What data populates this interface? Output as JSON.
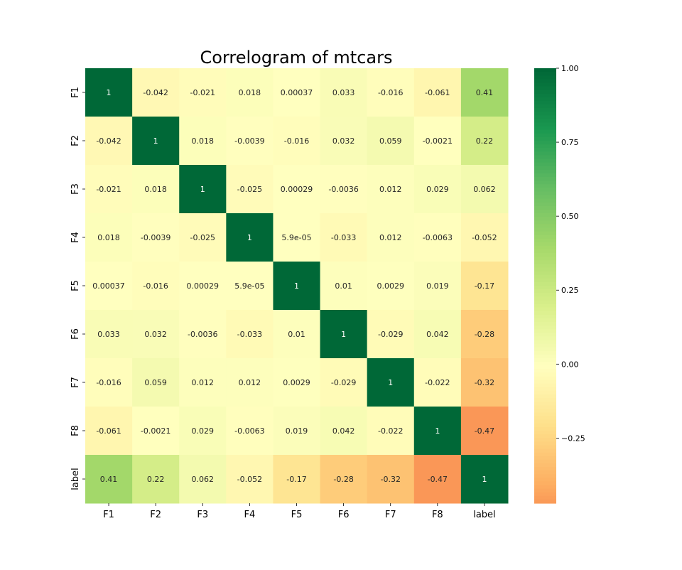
{
  "chart_data": {
    "type": "heatmap",
    "title": "Correlogram of mtcars",
    "xlabel": "",
    "ylabel": "",
    "labels": [
      "F1",
      "F2",
      "F3",
      "F4",
      "F5",
      "F6",
      "F7",
      "F8",
      "label"
    ],
    "values": [
      [
        1,
        -0.042,
        -0.021,
        0.018,
        0.00037,
        0.033,
        -0.016,
        -0.061,
        0.41
      ],
      [
        -0.042,
        1,
        0.018,
        -0.0039,
        -0.016,
        0.032,
        0.059,
        -0.0021,
        0.22
      ],
      [
        -0.021,
        0.018,
        1,
        -0.025,
        0.00029,
        -0.0036,
        0.012,
        0.029,
        0.062
      ],
      [
        0.018,
        -0.0039,
        -0.025,
        1,
        5.9e-05,
        -0.033,
        0.012,
        -0.0063,
        -0.052
      ],
      [
        0.00037,
        -0.016,
        0.00029,
        5.9e-05,
        1,
        0.01,
        0.0029,
        0.019,
        -0.17
      ],
      [
        0.033,
        0.032,
        -0.0036,
        -0.033,
        0.01,
        1,
        -0.029,
        0.042,
        -0.28
      ],
      [
        -0.016,
        0.059,
        0.012,
        0.012,
        0.0029,
        -0.029,
        1,
        -0.022,
        -0.32
      ],
      [
        -0.061,
        -0.0021,
        0.029,
        -0.0063,
        0.019,
        0.042,
        -0.022,
        1,
        -0.47
      ],
      [
        0.41,
        0.22,
        0.062,
        -0.052,
        -0.17,
        -0.28,
        -0.32,
        -0.47,
        1
      ]
    ],
    "annotations": [
      [
        "1",
        "-0.042",
        "-0.021",
        "0.018",
        "0.00037",
        "0.033",
        "-0.016",
        "-0.061",
        "0.41"
      ],
      [
        "-0.042",
        "1",
        "0.018",
        "-0.0039",
        "-0.016",
        "0.032",
        "0.059",
        "-0.0021",
        "0.22"
      ],
      [
        "-0.021",
        "0.018",
        "1",
        "-0.025",
        "0.00029",
        "-0.0036",
        "0.012",
        "0.029",
        "0.062"
      ],
      [
        "0.018",
        "-0.0039",
        "-0.025",
        "1",
        "5.9e-05",
        "-0.033",
        "0.012",
        "-0.0063",
        "-0.052"
      ],
      [
        "0.00037",
        "-0.016",
        "0.00029",
        "5.9e-05",
        "1",
        "0.01",
        "0.0029",
        "0.019",
        "-0.17"
      ],
      [
        "0.033",
        "0.032",
        "-0.0036",
        "-0.033",
        "0.01",
        "1",
        "-0.029",
        "0.042",
        "-0.28"
      ],
      [
        "-0.016",
        "0.059",
        "0.012",
        "0.012",
        "0.0029",
        "-0.029",
        "1",
        "-0.022",
        "-0.32"
      ],
      [
        "-0.061",
        "-0.0021",
        "0.029",
        "-0.0063",
        "0.019",
        "0.042",
        "-0.022",
        "1",
        "-0.47"
      ],
      [
        "0.41",
        "0.22",
        "0.062",
        "-0.052",
        "-0.17",
        "-0.28",
        "-0.32",
        "-0.47",
        "1"
      ]
    ],
    "colorbar": {
      "vmin": -0.47,
      "vmax": 1,
      "ticks": [
        1.0,
        0.75,
        0.5,
        0.25,
        0.0,
        -0.25
      ],
      "tick_labels": [
        "1.00",
        "0.75",
        "0.50",
        "0.25",
        "0.00",
        "−0.25"
      ]
    },
    "colormap": "RdYlGn",
    "colormap_stops": [
      "#a50026",
      "#d73027",
      "#f46d43",
      "#fdae61",
      "#fee08b",
      "#ffffbf",
      "#d9ef8b",
      "#a6d96a",
      "#66bd63",
      "#1a9850",
      "#006837"
    ],
    "annotation_dark_color": "#262626",
    "annotation_light_color": "#ffffff",
    "grid": false,
    "legend": "none"
  }
}
